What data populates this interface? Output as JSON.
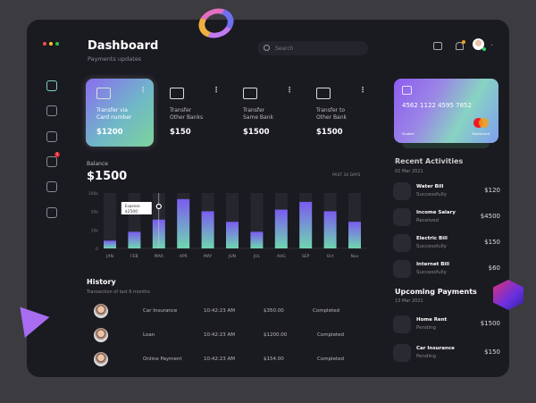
{
  "header": {
    "title": "Dashboard",
    "subtitle": "Payments updates",
    "search_placeholder": "Search",
    "notification_badge": "1"
  },
  "sidebar": {
    "items": [
      {
        "icon": "home-icon"
      },
      {
        "icon": "monitor-icon"
      },
      {
        "icon": "clipboard-icon"
      },
      {
        "icon": "messages-icon",
        "badge": "1"
      },
      {
        "icon": "trophy-icon"
      },
      {
        "icon": "document-icon"
      }
    ]
  },
  "transfers": [
    {
      "label1": "Transfer via",
      "label2": "Card number",
      "amount": "$1200",
      "icon": "card-icon",
      "active": true
    },
    {
      "label1": "Transfer",
      "label2": "Other Banks",
      "amount": "$150",
      "icon": "swap-arrows-icon"
    },
    {
      "label1": "Transfer",
      "label2": "Same Bank",
      "amount": "$1500",
      "icon": "bank-icon"
    },
    {
      "label1": "Transfer to",
      "label2": "Other Bank",
      "amount": "$1500",
      "icon": "receipt-icon"
    }
  ],
  "more_label": "⋮",
  "balance": {
    "label": "Balance",
    "amount": "$1500",
    "period": "PAST 30 DAYS"
  },
  "chart_data": {
    "type": "bar",
    "categories": [
      "JAN",
      "FEB",
      "MAR",
      "APR",
      "MAY",
      "JUN",
      "JUL",
      "AUG",
      "SEP",
      "Oct",
      "Nov"
    ],
    "values": [
      14,
      30,
      52,
      89,
      67,
      48,
      30,
      70,
      84,
      67,
      48
    ],
    "yticks": [
      "100k",
      "50k",
      "10k",
      "0"
    ],
    "ylim": [
      0,
      100
    ],
    "tooltip": {
      "category": "MAR",
      "label": "Expense",
      "value": "$2500"
    },
    "colors": {
      "top": "#7b5cf0",
      "bottom": "#6fd6b0",
      "track": "#26262e"
    }
  },
  "history": {
    "title": "History",
    "subtitle": "Transection of last 6 months",
    "rows": [
      {
        "name": "Car Insurance",
        "time": "10:42:23 AM",
        "amount": "$350.00",
        "status": "Completed"
      },
      {
        "name": "Loan",
        "time": "10:42:23 AM",
        "amount": "$1200.00",
        "status": "Completed"
      },
      {
        "name": "Online Payment",
        "time": "10:42:23 AM",
        "amount": "$154.00",
        "status": "Completed"
      }
    ]
  },
  "card": {
    "number": "4562 1122 4595 7852",
    "holder": "Student",
    "brand": "Mastercard"
  },
  "recent": {
    "title": "Recent Activities",
    "date": "02 Mar 2021",
    "items": [
      {
        "name": "Water Bill",
        "status": "Successfully",
        "amount": "$120",
        "icon": "timer-icon"
      },
      {
        "name": "Income Salary",
        "status": "Received",
        "amount": "$4500",
        "icon": "inbox-icon"
      },
      {
        "name": "Electric Bill",
        "status": "Successfully",
        "amount": "$150",
        "icon": "lightning-icon"
      },
      {
        "name": "Internet Bill",
        "status": "Successfully",
        "amount": "$60",
        "icon": "wifi-icon"
      }
    ]
  },
  "upcoming": {
    "title": "Upcoming Payments",
    "date": "13 Mar 2021",
    "items": [
      {
        "name": "Home Rent",
        "status": "Pending",
        "amount": "$1500",
        "icon": "house-icon"
      },
      {
        "name": "Car Insurance",
        "status": "Pending",
        "amount": "$150",
        "icon": "car-icon"
      }
    ]
  }
}
